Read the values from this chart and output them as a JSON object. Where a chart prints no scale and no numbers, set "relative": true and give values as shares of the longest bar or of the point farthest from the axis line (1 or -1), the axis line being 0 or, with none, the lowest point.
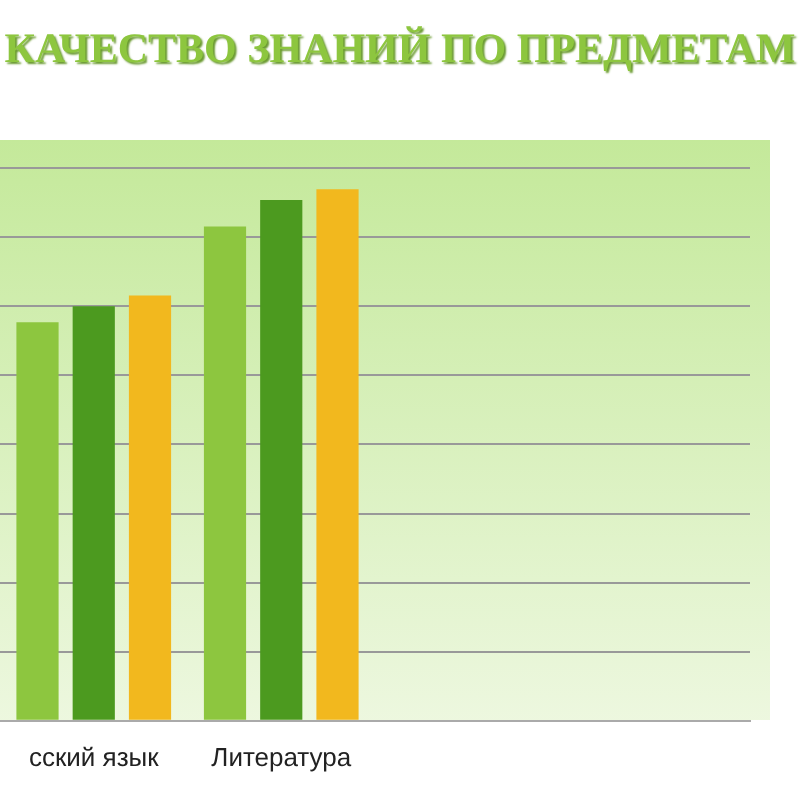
{
  "chart_data": {
    "type": "bar",
    "title": "КАЧЕСТВО ЗНАНИЙ ПО ПРЕДМЕТАМ",
    "categories": [
      "сский язык",
      "Литература",
      null,
      null
    ],
    "relative": true,
    "grid": "y",
    "legend": false,
    "series": [
      {
        "color": "#8dc63f",
        "values": [
          0.75,
          0.93,
          null,
          null
        ]
      },
      {
        "color": "#4c9a1f",
        "values": [
          0.78,
          0.98,
          null,
          null
        ]
      },
      {
        "color": "#f2b81e",
        "values": [
          0.8,
          1,
          null,
          null
        ]
      }
    ]
  }
}
